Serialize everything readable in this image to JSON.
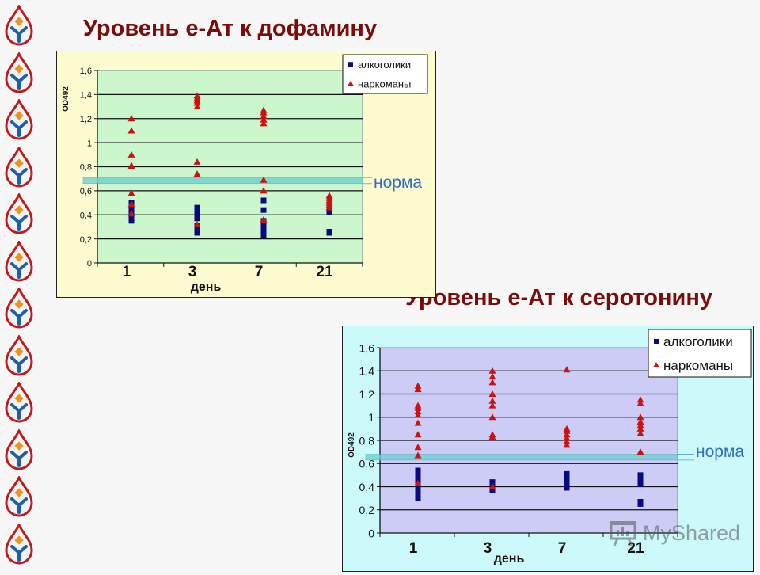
{
  "titles": {
    "dopamine": "Уровень е-Ат к дофамину",
    "serotonin": "Уровень е-Ат к серотонину"
  },
  "colors": {
    "title": "#7a0c0c",
    "alcoholics": "#0a0a80",
    "addicts": "#cc1111",
    "norm_band": "#6fd0d0",
    "norm_label": "#2f6fc0",
    "chart1_plot_bg": "#ccf7cc",
    "chart1_frame_bg": "#fdfcd0",
    "chart2_plot_bg": "#ccccf7",
    "chart2_frame_bg": "#ccfafa"
  },
  "watermark": "MyShared",
  "chart_data": [
    {
      "type": "scatter",
      "title": "Уровень е-Ат к дофамину",
      "xlabel": "день",
      "ylabel": "OD492",
      "categories": [
        "1",
        "3",
        "7",
        "21"
      ],
      "yticks": [
        "0",
        "0,2",
        "0,4",
        "0,6",
        "0,8",
        "1",
        "1,2",
        "1,4",
        "1,6"
      ],
      "ylim": [
        0,
        1.6
      ],
      "grid": true,
      "legend": {
        "position": "top-right",
        "entries": [
          "алкоголики",
          "наркоманы"
        ]
      },
      "norm": {
        "label": "норма",
        "low": 0.66,
        "high": 0.71
      },
      "series": [
        {
          "name": "алкоголики",
          "marker": "square",
          "points": {
            "1": [
              0.35,
              0.38,
              0.41,
              0.44,
              0.47,
              0.5
            ],
            "3": [
              0.25,
              0.28,
              0.31,
              0.37,
              0.4,
              0.43,
              0.46
            ],
            "7": [
              0.23,
              0.26,
              0.29,
              0.32,
              0.35,
              0.44,
              0.52
            ],
            "21": [
              0.25,
              0.26,
              0.42,
              0.45
            ]
          }
        },
        {
          "name": "наркоманы",
          "marker": "triangle",
          "points": {
            "1": [
              0.41,
              0.49,
              0.58,
              0.8,
              0.81,
              0.9,
              1.1,
              1.2
            ],
            "3": [
              0.32,
              0.74,
              0.84,
              1.3,
              1.33,
              1.35,
              1.37,
              1.39
            ],
            "7": [
              0.36,
              0.6,
              0.69,
              1.16,
              1.19,
              1.22,
              1.25,
              1.27
            ],
            "21": [
              0.46,
              0.48,
              0.5,
              0.52,
              0.54,
              0.56
            ]
          }
        }
      ]
    },
    {
      "type": "scatter",
      "title": "Уровень е-Ат к серотонину",
      "xlabel": "день",
      "ylabel": "OD492",
      "categories": [
        "1",
        "3",
        "7",
        "21"
      ],
      "yticks": [
        "0",
        "0,2",
        "0,4",
        "0,6",
        "0,8",
        "1",
        "1,2",
        "1,4",
        "1,6"
      ],
      "ylim": [
        0,
        1.6
      ],
      "grid": true,
      "legend": {
        "position": "top-right",
        "entries": [
          "алкоголики",
          "наркоманы"
        ]
      },
      "norm": {
        "label": "норма",
        "low": 0.63,
        "high": 0.68
      },
      "series": [
        {
          "name": "алкоголики",
          "marker": "square",
          "points": {
            "1": [
              0.3,
              0.34,
              0.38,
              0.42,
              0.46,
              0.5,
              0.54
            ],
            "3": [
              0.37,
              0.4,
              0.44
            ],
            "7": [
              0.39,
              0.43,
              0.47,
              0.51
            ],
            "21": [
              0.25,
              0.27,
              0.42,
              0.46,
              0.5
            ]
          }
        },
        {
          "name": "наркоманы",
          "marker": "triangle",
          "points": {
            "1": [
              0.43,
              0.67,
              0.74,
              0.85,
              0.95,
              1.02,
              1.05,
              1.08,
              1.1,
              1.24,
              1.27
            ],
            "3": [
              0.4,
              0.83,
              0.85,
              1.0,
              1.1,
              1.14,
              1.2,
              1.3,
              1.35,
              1.4
            ],
            "7": [
              0.76,
              0.79,
              0.82,
              0.85,
              0.88,
              0.9,
              1.41
            ],
            "21": [
              0.7,
              0.86,
              0.9,
              0.93,
              0.96,
              1.0,
              1.12,
              1.15
            ]
          }
        }
      ]
    }
  ]
}
